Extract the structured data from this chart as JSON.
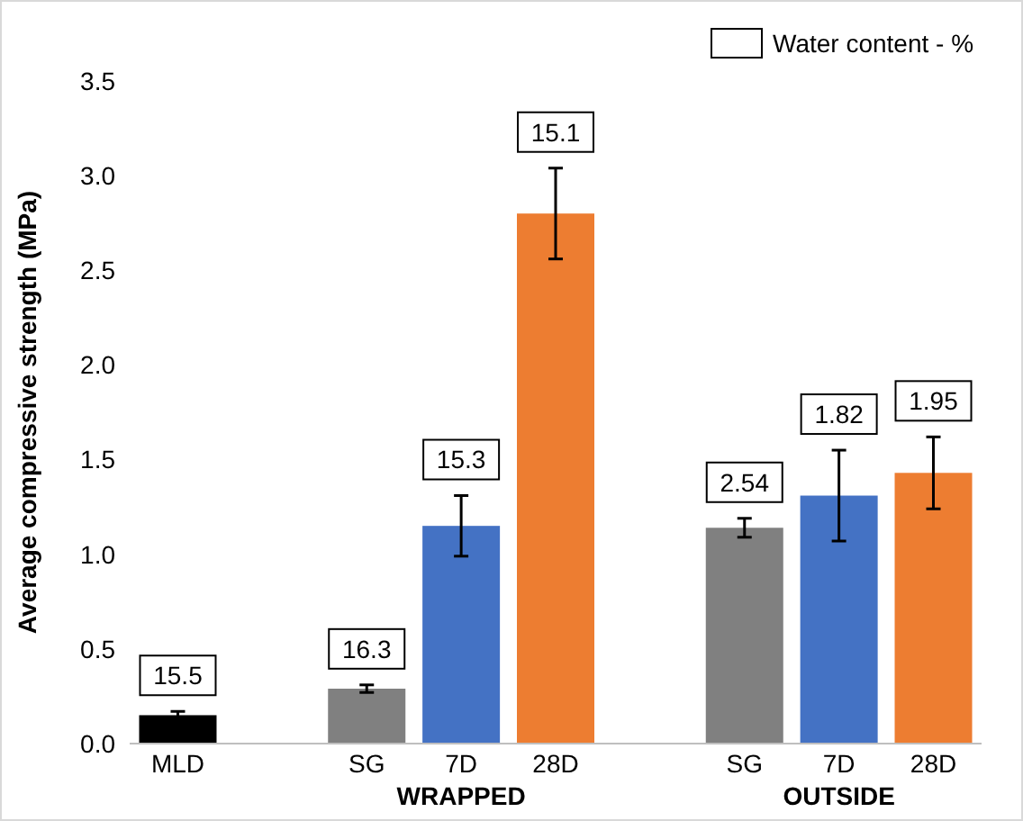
{
  "chart_data": {
    "type": "bar",
    "ylabel": "Average compressive strength (MPa)",
    "categories": [
      "MLD",
      null,
      "SG",
      "7D",
      "28D",
      null,
      "SG",
      "7D",
      "28D"
    ],
    "values": [
      0.15,
      null,
      0.29,
      1.15,
      2.8,
      null,
      1.14,
      1.31,
      1.43
    ],
    "colors": [
      "#000000",
      null,
      "#808080",
      "#4472c4",
      "#ed7d31",
      null,
      "#808080",
      "#4472c4",
      "#ed7d31"
    ],
    "errors": [
      0.02,
      null,
      0.02,
      0.16,
      0.24,
      null,
      0.05,
      0.24,
      0.19
    ],
    "legend_title": "Water content - %",
    "annotations": [
      "15.5",
      "16.3",
      "15.3",
      "15.1",
      "2.54",
      "1.82",
      "1.95",
      "WRAPPED",
      "OUTSIDE"
    ],
    "ylim": [
      0,
      3.5
    ],
    "yticks": [
      {
        "value": 0,
        "label": "0.0"
      },
      {
        "value": 0.5,
        "label": "0.5"
      },
      {
        "value": 1,
        "label": "1.0"
      },
      {
        "value": 1.5,
        "label": "1.5"
      },
      {
        "value": 2,
        "label": "2.0"
      },
      {
        "value": 2.5,
        "label": "2.5"
      },
      {
        "value": 3,
        "label": "3.0"
      },
      {
        "value": 3.5,
        "label": "3.5"
      }
    ]
  }
}
